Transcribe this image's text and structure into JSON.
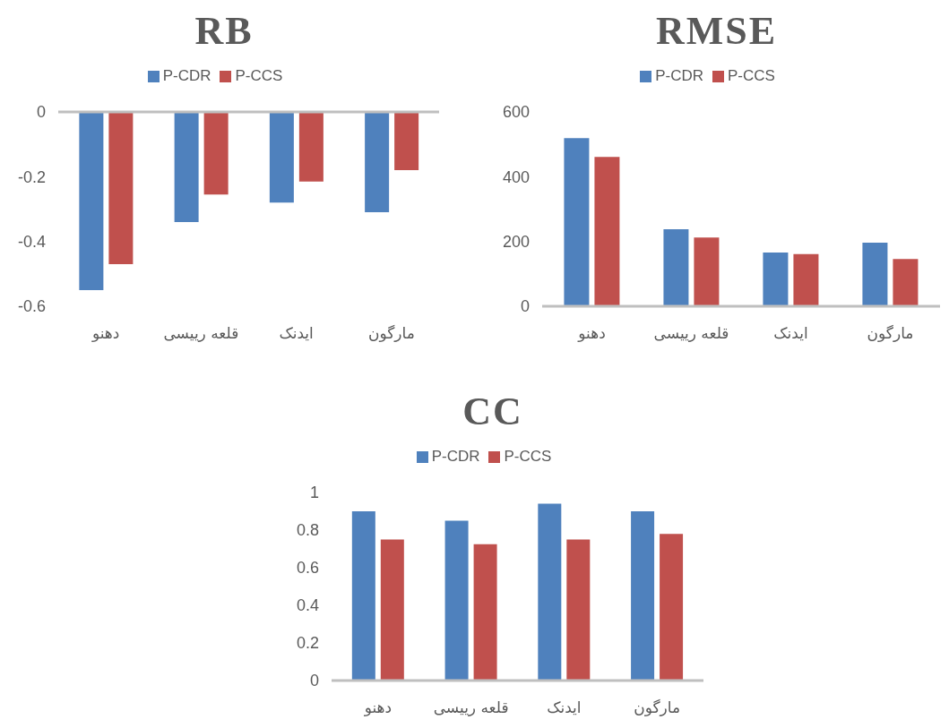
{
  "chart_data": [
    {
      "type": "bar",
      "title": "RB",
      "categories": [
        "دهنو",
        "قلعه رییسی",
        "ایدنک",
        "مارگون"
      ],
      "series": [
        {
          "name": "P-CDR",
          "color": "#4f81bd",
          "values": [
            -0.55,
            -0.34,
            -0.28,
            -0.31
          ]
        },
        {
          "name": "P-CCS",
          "color": "#c0504d",
          "values": [
            -0.47,
            -0.255,
            -0.215,
            -0.18
          ]
        }
      ],
      "ylim": [
        -0.6,
        0
      ],
      "yticks": [
        0,
        -0.2,
        -0.4,
        -0.6
      ],
      "legend": "top"
    },
    {
      "type": "bar",
      "title": "RMSE",
      "categories": [
        "دهنو",
        "قلعه رییسی",
        "ایدنک",
        "مارگون"
      ],
      "series": [
        {
          "name": "P-CDR",
          "color": "#4f81bd",
          "values": [
            519,
            238,
            166,
            196
          ]
        },
        {
          "name": "P-CCS",
          "color": "#c0504d",
          "values": [
            461,
            212,
            161,
            146
          ]
        }
      ],
      "ylim": [
        0,
        600
      ],
      "yticks": [
        0,
        200,
        400,
        600
      ],
      "legend": "top"
    },
    {
      "type": "bar",
      "title": "CC",
      "categories": [
        "دهنو",
        "قلعه رییسی",
        "ایدنک",
        "مارگون"
      ],
      "series": [
        {
          "name": "P-CDR",
          "color": "#4f81bd",
          "values": [
            0.9,
            0.85,
            0.94,
            0.9
          ]
        },
        {
          "name": "P-CCS",
          "color": "#c0504d",
          "values": [
            0.75,
            0.725,
            0.75,
            0.78
          ]
        }
      ],
      "ylim": [
        0,
        1
      ],
      "yticks": [
        0,
        0.2,
        0.4,
        0.6,
        0.8,
        1
      ],
      "legend": "top"
    }
  ]
}
